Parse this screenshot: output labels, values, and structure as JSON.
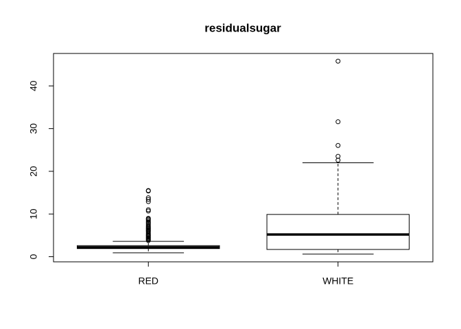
{
  "chart_data": {
    "type": "box",
    "title": "residualsugar",
    "categories": [
      "RED",
      "WHITE"
    ],
    "boxes": [
      {
        "min": 0.9,
        "q1": 1.9,
        "median": 2.2,
        "q3": 2.6,
        "max": 3.6,
        "outliers": [
          3.8,
          4,
          4.2,
          4.4,
          4.6,
          4.8,
          5,
          5.2,
          5.5,
          5.8,
          6,
          6.2,
          6.4,
          6.6,
          6.8,
          7,
          7.2,
          7.5,
          7.8,
          8,
          8.3,
          8.6,
          8.8,
          9,
          10.7,
          11,
          12.9,
          13.4,
          13.8,
          15.4,
          15.5
        ]
      },
      {
        "min": 0.6,
        "q1": 1.7,
        "median": 5.2,
        "q3": 9.9,
        "max": 22,
        "outliers": [
          22.6,
          23.5,
          26.05,
          31.6,
          45.8
        ]
      }
    ],
    "color": "#000000",
    "ylim": [
      -1.2,
      47.6
    ],
    "yticks": [
      0,
      10,
      20,
      30,
      40
    ]
  }
}
